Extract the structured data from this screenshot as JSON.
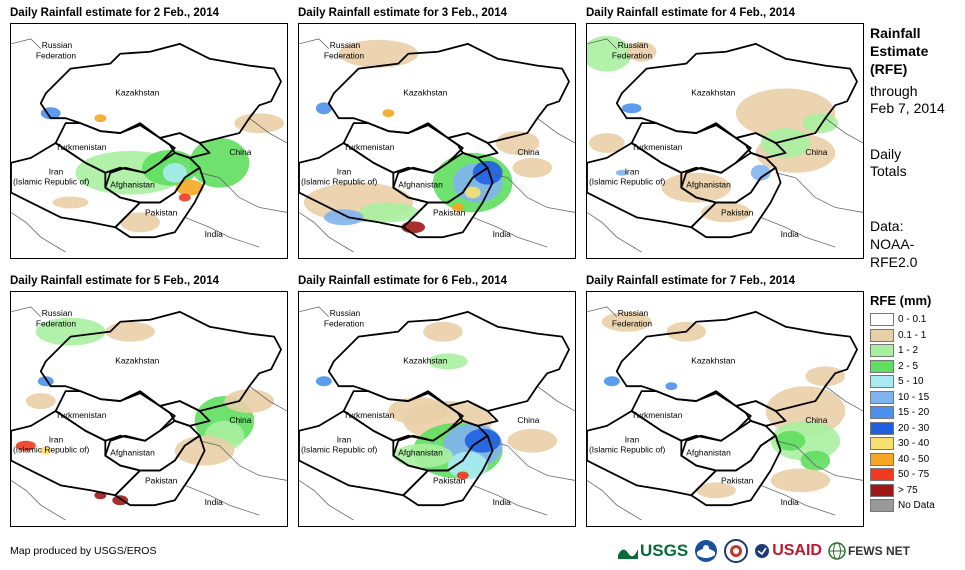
{
  "panels": [
    {
      "title": "Daily Rainfall estimate for 2 Feb., 2014"
    },
    {
      "title": "Daily Rainfall estimate for 3 Feb., 2014"
    },
    {
      "title": "Daily Rainfall estimate for 4 Feb., 2014"
    },
    {
      "title": "Daily Rainfall estimate for 5 Feb., 2014"
    },
    {
      "title": "Daily Rainfall estimate for 6 Feb., 2014"
    },
    {
      "title": "Daily Rainfall estimate for 7 Feb., 2014"
    }
  ],
  "map_labels": {
    "russia1": "Russian",
    "russia2": "Federation",
    "kazakhstan": "Kazakhstan",
    "turkmenistan": "Turkmenistan",
    "china": "China",
    "iran1": "Iran",
    "iran2": "(Islamic Republic of)",
    "afghanistan": "Afghanistan",
    "pakistan": "Pakistan",
    "india": "India"
  },
  "side_panel": {
    "title_line1": "Rainfall",
    "title_line2": "Estimate",
    "title_line3": "(RFE)",
    "through_line1": "through",
    "through_line2": "Feb 7, 2014",
    "totals_line1": "Daily",
    "totals_line2": "Totals",
    "data_line1": "Data:",
    "data_line2": "NOAA-",
    "data_line3": "RFE2.0"
  },
  "legend": {
    "title": "RFE (mm)",
    "items": [
      {
        "label": "0 - 0.1",
        "color": "#ffffff"
      },
      {
        "label": "0.1 - 1",
        "color": "#e9cfa6"
      },
      {
        "label": "1 - 2",
        "color": "#a8f0a0"
      },
      {
        "label": "2 - 5",
        "color": "#5fde5f"
      },
      {
        "label": "5 - 10",
        "color": "#a8ecf2"
      },
      {
        "label": "10 - 15",
        "color": "#7fb4f0"
      },
      {
        "label": "15 - 20",
        "color": "#4a90ec"
      },
      {
        "label": "20 - 30",
        "color": "#1f5fe0"
      },
      {
        "label": "30 - 40",
        "color": "#f7e070"
      },
      {
        "label": "40 - 50",
        "color": "#f5a623"
      },
      {
        "label": "50 - 75",
        "color": "#f0391e"
      },
      {
        "label": "> 75",
        "color": "#a01818"
      },
      {
        "label": "No Data",
        "color": "#999999"
      }
    ]
  },
  "footer": {
    "credit": "Map produced by USGS/EROS",
    "logo_usgs": "USGS",
    "logo_usaid": "USAID",
    "logo_fewsnet": "FEWS NET"
  }
}
